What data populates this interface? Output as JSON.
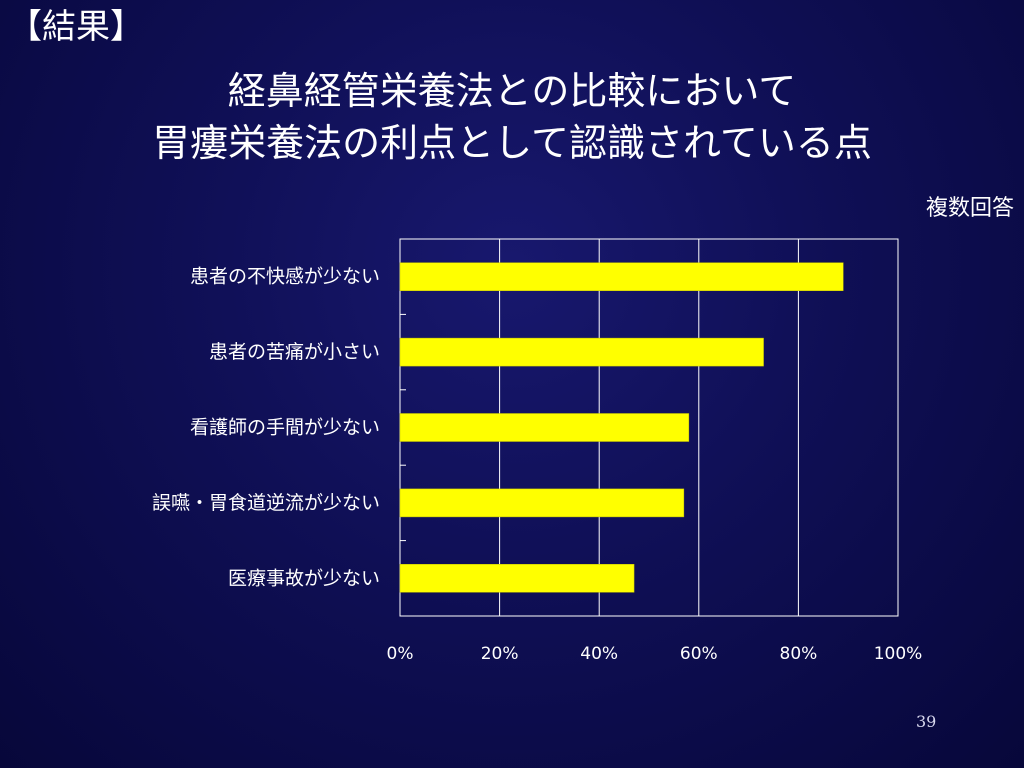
{
  "slide": {
    "section_label": "【結果】",
    "title_line1": "経鼻経管栄養法との比較において",
    "title_line2": "胃瘻栄養法の利点として認識されている点",
    "note": "複数回答",
    "page_number": "39"
  },
  "colors": {
    "background": "#0f0f55",
    "bar": "#ffff00",
    "grid": "#ffffff",
    "text": "#ffffff"
  },
  "chart_data": {
    "type": "bar",
    "orientation": "horizontal",
    "categories": [
      "患者の不快感が少ない",
      "患者の苦痛が小さい",
      "看護師の手間が少ない",
      "誤嚥・胃食道逆流が少ない",
      "医療事故が少ない"
    ],
    "values": [
      89,
      73,
      58,
      57,
      47
    ],
    "value_unit": "%",
    "xlim": [
      0,
      100
    ],
    "xticks": [
      "0%",
      "20%",
      "40%",
      "60%",
      "80%",
      "100%"
    ],
    "grid": true,
    "legend": "none",
    "title": "",
    "xlabel": "",
    "ylabel": ""
  }
}
